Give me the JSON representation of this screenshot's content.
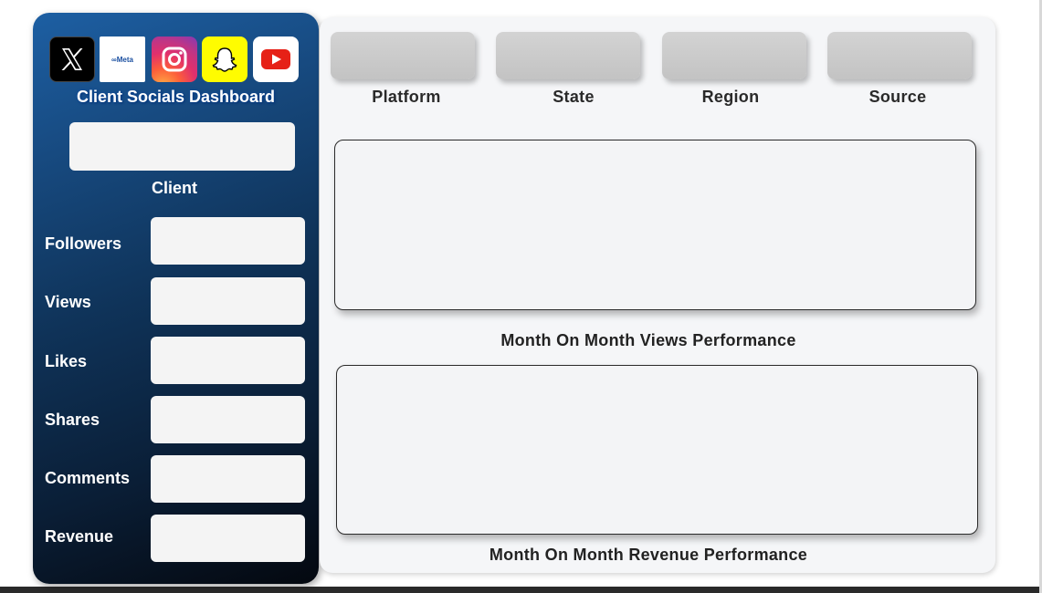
{
  "sidebar": {
    "logos": [
      "x-logo-icon",
      "meta-logo-icon",
      "instagram-logo-icon",
      "snapchat-logo-icon",
      "youtube-logo-icon"
    ],
    "meta_logo_text": "∞Meta",
    "title": "Client Socials Dashboard",
    "client_label": "Client",
    "metrics": [
      {
        "label": "Followers",
        "value": ""
      },
      {
        "label": "Views",
        "value": ""
      },
      {
        "label": "Likes",
        "value": ""
      },
      {
        "label": "Shares",
        "value": ""
      },
      {
        "label": "Comments",
        "value": ""
      },
      {
        "label": "Revenue",
        "value": ""
      }
    ]
  },
  "filters": [
    {
      "label": "Platform"
    },
    {
      "label": "State"
    },
    {
      "label": "Region"
    },
    {
      "label": "Source"
    }
  ],
  "charts": {
    "views_title": "Month On Month Views Performance",
    "revenue_title": "Month On Month Revenue Performance"
  },
  "colors": {
    "sidebar_top": "#1d5fa3",
    "sidebar_bottom": "#04080f",
    "panel_bg": "#f5f6f8",
    "slicer_bg": "#cfcfcf"
  }
}
